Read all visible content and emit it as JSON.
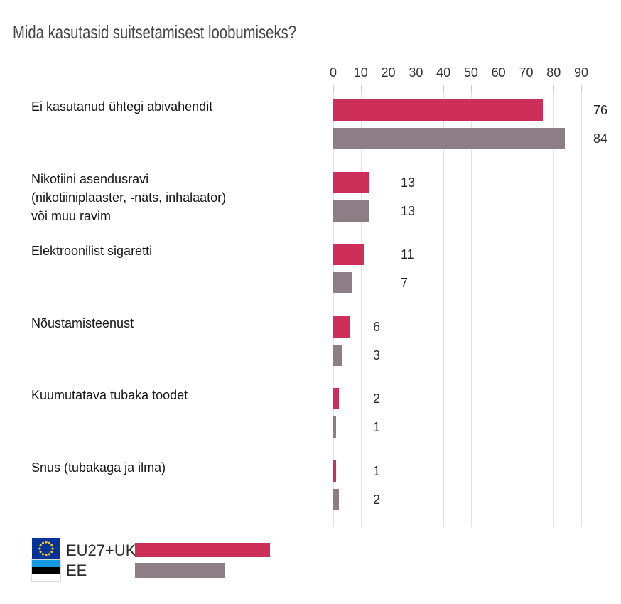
{
  "title": "Mida kasutasid suitsetamisest loobumiseks?",
  "chart_data": {
    "type": "bar",
    "orientation": "horizontal",
    "title": "Mida kasutasid suitsetamisest loobumiseks?",
    "categories": [
      "Ei kasutanud ühtegi abivahendit",
      "Nikotiini asendusravi\n(nikotiiniplaaster, -näts, inhalaator)\nvõi muu ravim",
      "Elektroonilist sigaretti",
      "Nõustamisteenust",
      "Kuumutatava tubaka toodet",
      "Snus (tubakaga ja ilma)"
    ],
    "series": [
      {
        "name": "EU27+UK",
        "color": "#cd2e5a",
        "values": [
          76,
          13,
          11,
          6,
          2,
          1
        ]
      },
      {
        "name": "EE",
        "color": "#8c7e84",
        "values": [
          84,
          13,
          7,
          3,
          1,
          2
        ]
      }
    ],
    "xlim": [
      0,
      90
    ],
    "xticks": [
      0,
      10,
      20,
      30,
      40,
      50,
      60,
      70,
      80,
      90
    ],
    "grid": true,
    "value_labels": true,
    "legend_position": "bottom-left"
  },
  "legend": {
    "items": [
      {
        "label": "EU27+UK",
        "flag": "eu-flag-icon",
        "color": "#cd2e5a",
        "swatch_width": 190
      },
      {
        "label": "EE",
        "flag": "estonia-flag-icon",
        "color": "#8c7e84",
        "swatch_width": 127
      }
    ]
  },
  "colors": {
    "eu_bar": "#cd2e5a",
    "ee_bar": "#8c7e84",
    "gridline": "#e3e3e3",
    "axis_line": "#cccccc",
    "title_text": "#454545",
    "category_text": "#161616",
    "eu_flag_blue": "#003399",
    "eu_flag_stars": "#ffcc00",
    "ee_flag_blue": "#1499e3",
    "ee_flag_black": "#000000",
    "ee_flag_white": "#ffffff"
  }
}
